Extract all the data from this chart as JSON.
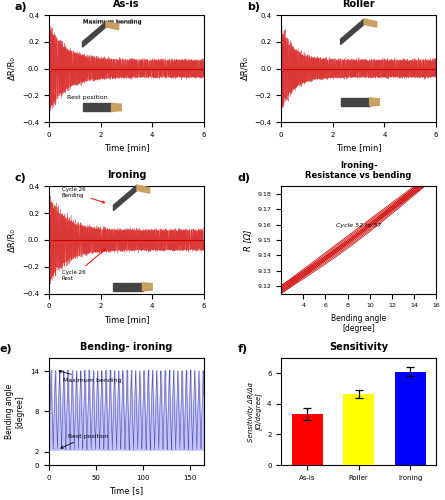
{
  "panel_a": {
    "title": "As-is",
    "xlabel": "Time [min]",
    "ylabel": "ΔR/R₀",
    "xlim": [
      0,
      6
    ],
    "ylim": [
      -0.4,
      0.4
    ],
    "label": "a)",
    "annotation_top": "Maximum bending",
    "annotation_bot": "Rest position",
    "signal_color": "#ffaaaa",
    "signal_center_color": "#cc0000",
    "initial_amp": 0.3,
    "final_amp": 0.06,
    "decay_time": 2.0
  },
  "panel_b": {
    "title": "Roller",
    "xlabel": "Time [min]",
    "ylabel": "ΔR/R₀",
    "xlim": [
      0,
      6
    ],
    "ylim": [
      -0.4,
      0.4
    ],
    "label": "b)",
    "signal_color": "#ffaaaa",
    "signal_center_color": "#cc0000",
    "initial_amp": 0.28,
    "final_amp": 0.06,
    "decay_time": 1.5
  },
  "panel_c": {
    "title": "Ironing",
    "xlabel": "Time [min]",
    "ylabel": "ΔR/R₀",
    "xlim": [
      0,
      6
    ],
    "ylim": [
      -0.4,
      0.4
    ],
    "label": "c)",
    "annotation_top": "Cycle 26\nBending",
    "annotation_bot": "Cycle 26\nRest",
    "signal_color": "#ffaaaa",
    "signal_center_color": "#cc0000",
    "initial_amp": 0.3,
    "final_amp": 0.07,
    "decay_time": 2.0
  },
  "panel_d": {
    "title": "Ironing-\nResistance vs bending",
    "subtitle": "Cycle 52 to 57",
    "xlabel": "Bending angle\n[degree]",
    "ylabel": "R [Ω]",
    "xlim": [
      2,
      16
    ],
    "ymin": 9.115,
    "ymax": 9.185,
    "label": "d)",
    "line_color": "#cc0000"
  },
  "panel_e": {
    "title": "Bending- ironing",
    "xlabel": "Time [s]",
    "ylabel": "Bending angle\n[degree]",
    "xlim": [
      0,
      165
    ],
    "ylim": [
      0,
      16
    ],
    "label": "e)",
    "annotation_top": "Maximum bending",
    "annotation_bot": "Rest position",
    "signal_color": "#bbbbff",
    "signal_center_color": "#5555aa",
    "max_val": 14.2,
    "min_val": 2.3,
    "period": 4.5
  },
  "panel_f": {
    "title": "Sensitivity",
    "xlabel": "",
    "ylabel": "Sensitivity ΔR/Δα\n[Ω/degree]",
    "label": "f)",
    "categories": [
      "As-is",
      "Roller",
      "Ironing"
    ],
    "values": [
      3.35,
      4.65,
      6.1
    ],
    "errors": [
      0.4,
      0.25,
      0.3
    ],
    "bar_colors": [
      "#ff0000",
      "#ffff00",
      "#0000ff"
    ],
    "ylim": [
      0,
      7
    ]
  }
}
